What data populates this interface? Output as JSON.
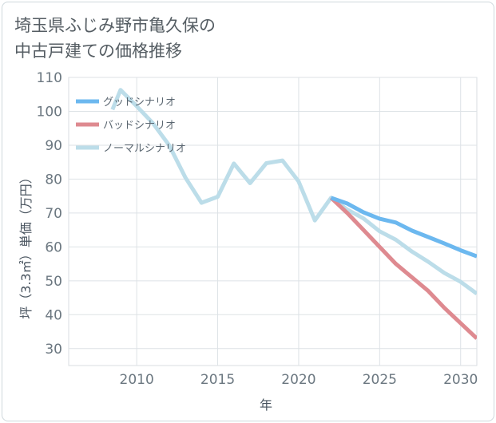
{
  "chart_data": {
    "type": "line",
    "title": [
      "埼玉県ふじみ野市亀久保の",
      "中古戸建ての価格推移"
    ],
    "xlabel": "年",
    "ylabel": "坪（3.3㎡）単価（万円）",
    "xlim": [
      2005.8,
      2031
    ],
    "ylim": [
      25,
      110
    ],
    "x_ticks": [
      2010,
      2015,
      2020,
      2025,
      2030
    ],
    "y_ticks": [
      30,
      40,
      50,
      60,
      70,
      80,
      90,
      100,
      110
    ],
    "grid": true,
    "legend_position": "top-left",
    "series": [
      {
        "name": "グッドシナリオ",
        "color": "#6cb8ef",
        "x": [
          2022,
          2023,
          2024,
          2025,
          2026,
          2027,
          2028,
          2029,
          2030,
          2031
        ],
        "y": [
          74.5,
          72.8,
          70.2,
          68.3,
          67.2,
          64.8,
          62.9,
          61.0,
          59.0,
          57.2
        ]
      },
      {
        "name": "バッドシナリオ",
        "color": "#de8a90",
        "x": [
          2022,
          2023,
          2024,
          2025,
          2026,
          2027,
          2028,
          2029,
          2030,
          2031
        ],
        "y": [
          74.5,
          70.0,
          65.0,
          60.0,
          55.0,
          51.0,
          47.0,
          42.0,
          37.5,
          33.0
        ]
      },
      {
        "name": "ノーマルシナリオ",
        "color": "#bcdde9",
        "x": [
          2008.5,
          2009,
          2010,
          2011,
          2012,
          2013,
          2014,
          2015,
          2016,
          2017,
          2018,
          2019,
          2020,
          2021,
          2022,
          2023,
          2024,
          2025,
          2026,
          2027,
          2028,
          2029,
          2030,
          2031
        ],
        "y": [
          100.5,
          106.3,
          101.5,
          96.5,
          90.0,
          80.5,
          73.0,
          74.8,
          84.6,
          78.8,
          84.7,
          85.5,
          79.3,
          67.8,
          74.5,
          71.0,
          68.4,
          64.6,
          62.1,
          58.6,
          55.6,
          52.3,
          49.7,
          46.2
        ]
      }
    ]
  }
}
